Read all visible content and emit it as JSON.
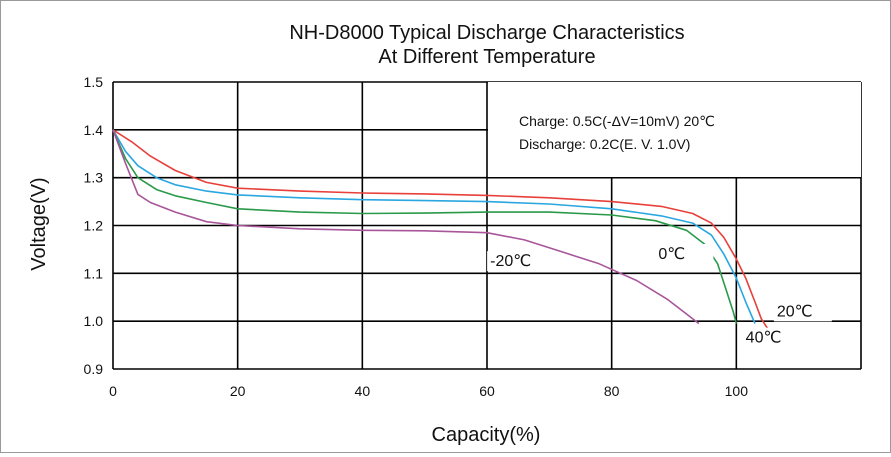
{
  "chart_data": {
    "type": "line",
    "title": "NH-D8000 Typical Discharge Characteristics",
    "subtitle": "At Different Temperature",
    "xlabel": "Capacity(%)",
    "ylabel": "Voltage(V)",
    "xlim": [
      0,
      120
    ],
    "ylim": [
      0.9,
      1.5
    ],
    "xticks": [
      "0",
      "20",
      "40",
      "60",
      "80",
      "100"
    ],
    "yticks": [
      "0.9",
      "1.0",
      "1.1",
      "1.2",
      "1.3",
      "1.4",
      "1.5"
    ],
    "grid": true,
    "annotations": [
      "Charge: 0.5C(-ΔV=10mV) 20℃",
      "Discharge: 0.2C(E. V.  1.0V)"
    ],
    "series": [
      {
        "name": "20℃",
        "color": "#e8403a",
        "x": [
          0,
          3,
          6,
          10,
          15,
          20,
          30,
          40,
          50,
          60,
          70,
          80,
          88,
          93,
          96,
          98,
          100,
          101.5,
          103,
          104,
          105
        ],
        "y": [
          1.4,
          1.375,
          1.345,
          1.315,
          1.29,
          1.278,
          1.272,
          1.268,
          1.266,
          1.263,
          1.258,
          1.25,
          1.24,
          1.225,
          1.205,
          1.175,
          1.13,
          1.09,
          1.04,
          1.005,
          0.985
        ]
      },
      {
        "name": "40℃",
        "color": "#2aa7e0",
        "x": [
          0,
          2,
          4,
          7,
          10,
          15,
          20,
          30,
          40,
          50,
          60,
          70,
          80,
          88,
          93,
          96,
          98,
          100,
          101.5,
          103
        ],
        "y": [
          1.4,
          1.355,
          1.325,
          1.3,
          1.285,
          1.272,
          1.264,
          1.258,
          1.254,
          1.252,
          1.25,
          1.245,
          1.235,
          1.22,
          1.205,
          1.18,
          1.14,
          1.09,
          1.04,
          0.995
        ]
      },
      {
        "name": "0℃",
        "color": "#2a9a4a",
        "x": [
          0,
          2,
          4,
          7,
          10,
          15,
          20,
          30,
          40,
          50,
          60,
          70,
          80,
          87,
          92,
          95,
          97,
          98.5,
          99.5,
          100
        ],
        "y": [
          1.4,
          1.34,
          1.3,
          1.275,
          1.262,
          1.248,
          1.235,
          1.228,
          1.225,
          1.226,
          1.228,
          1.228,
          1.222,
          1.21,
          1.19,
          1.16,
          1.12,
          1.06,
          1.02,
          0.995
        ]
      },
      {
        "name": "-20℃",
        "color": "#a8569a",
        "x": [
          0,
          2,
          4,
          6,
          10,
          15,
          20,
          30,
          40,
          50,
          60,
          66,
          72,
          78,
          84,
          89,
          92,
          94
        ],
        "y": [
          1.4,
          1.33,
          1.265,
          1.248,
          1.228,
          1.208,
          1.2,
          1.193,
          1.19,
          1.189,
          1.185,
          1.17,
          1.145,
          1.12,
          1.085,
          1.045,
          1.015,
          0.995
        ]
      }
    ],
    "series_labels": [
      {
        "name": "-20℃",
        "x": 60.5,
        "y": 1.115
      },
      {
        "name": "0℃",
        "x": 87.5,
        "y": 1.13
      },
      {
        "name": "20℃",
        "x": 106.5,
        "y": 1.01
      },
      {
        "name": "40℃",
        "x": 101.5,
        "y": 0.955
      }
    ],
    "colors": {
      "gridline": "#000000",
      "axis": "#000000"
    }
  }
}
